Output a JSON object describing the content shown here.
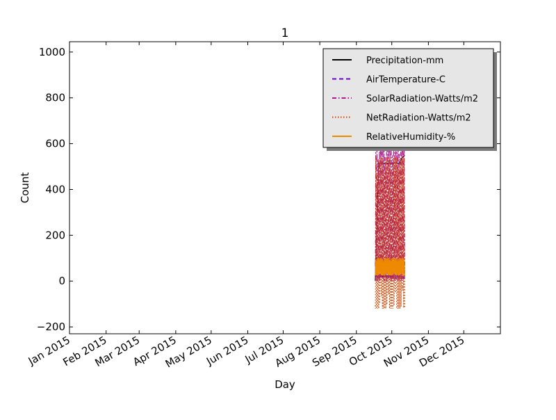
{
  "chart_data": {
    "type": "line",
    "title": "1",
    "xlabel": "Day",
    "ylabel": "Count",
    "x_tick_labels": [
      "Jan 2015",
      "Feb 2015",
      "Mar 2015",
      "Apr 2015",
      "May 2015",
      "Jun 2015",
      "Jul 2015",
      "Aug 2015",
      "Sep 2015",
      "Oct 2015",
      "Nov 2015",
      "Dec 2015"
    ],
    "x_tick_dates": [
      "2015-01-01",
      "2015-02-01",
      "2015-03-01",
      "2015-04-01",
      "2015-05-01",
      "2015-06-01",
      "2015-07-01",
      "2015-08-01",
      "2015-09-01",
      "2015-10-01",
      "2015-11-01",
      "2015-12-01"
    ],
    "xlim": [
      "2015-01-01",
      "2016-01-01"
    ],
    "y_ticks": [
      -200,
      0,
      200,
      400,
      600,
      800,
      1000
    ],
    "y_tick_labels": [
      "−200",
      "0",
      "200",
      "400",
      "600",
      "800",
      "1000"
    ],
    "ylim": [
      -230,
      1045
    ],
    "grid": false,
    "legend": "top-right",
    "series": [
      {
        "name": "Precipitation-mm",
        "color": "#000000",
        "dash": "solid",
        "points": [
          [
            "2015-09-17",
            0
          ],
          [
            "2015-09-20",
            515
          ],
          [
            "2015-09-25",
            515
          ],
          [
            "2015-10-01",
            515
          ],
          [
            "2015-10-05",
            515
          ],
          [
            "2015-10-08",
            515
          ],
          [
            "2015-10-09",
            535
          ],
          [
            "2015-10-12",
            550
          ]
        ]
      },
      {
        "name": "AirTemperature-C",
        "color": "#6600cc",
        "dash": "dashed",
        "min": 10,
        "max": 25,
        "start": "2015-09-17",
        "end": "2015-10-12"
      },
      {
        "name": "SolarRadiation-Watts/m2",
        "color": "#b0198c",
        "dash": "dashdot",
        "min": 0,
        "max": 600,
        "start": "2015-09-17",
        "end": "2015-10-12"
      },
      {
        "name": "NetRadiation-Watts/m2",
        "color": "#cc4400",
        "dash": "dotted",
        "min": -120,
        "max": 540,
        "start": "2015-09-17",
        "end": "2015-10-12"
      },
      {
        "name": "RelativeHumidity-%",
        "color": "#ee8a00",
        "dash": "solid",
        "min": 25,
        "max": 100,
        "start": "2015-09-17",
        "end": "2015-10-12"
      }
    ]
  }
}
